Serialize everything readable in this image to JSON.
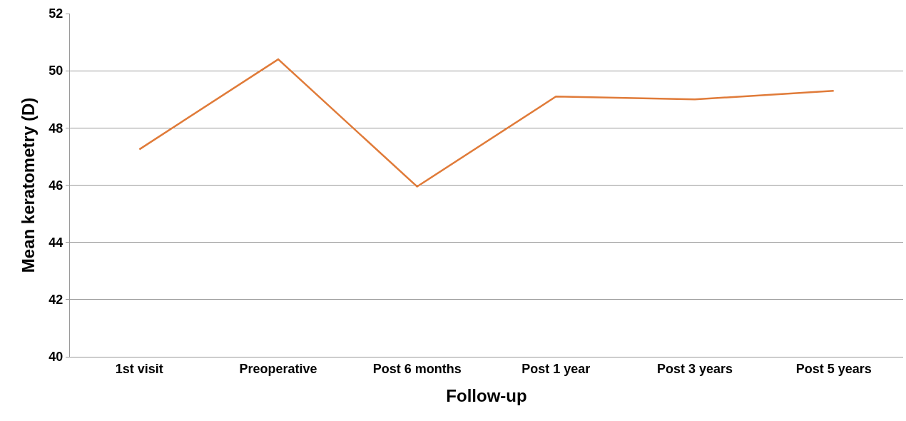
{
  "chart_data": {
    "type": "line",
    "xlabel": "Follow-up",
    "ylabel": "Mean keratometry (D)",
    "categories": [
      "1st visit",
      "Preoperative",
      "Post 6 months",
      "Post 1 year",
      "Post 3 years",
      "Post 5 years"
    ],
    "series": [
      {
        "color": "#e07b39",
        "values": [
          47.25,
          50.4,
          45.95,
          49.1,
          49.0,
          49.3
        ]
      }
    ],
    "ylim": [
      40,
      52
    ],
    "yticks": [
      40,
      42,
      44,
      46,
      48,
      50,
      52
    ],
    "grid": "y",
    "marker": "none",
    "line_style": "solid"
  }
}
